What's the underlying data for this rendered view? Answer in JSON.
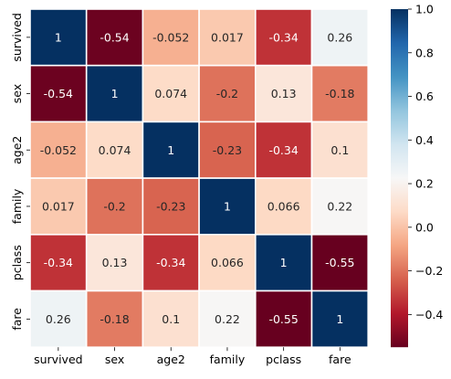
{
  "chart_data": {
    "type": "heatmap",
    "title": "",
    "xlabel": "",
    "ylabel": "",
    "x_labels": [
      "survived",
      "sex",
      "age2",
      "family",
      "pclass",
      "fare"
    ],
    "y_labels": [
      "survived",
      "sex",
      "age2",
      "family",
      "pclass",
      "fare"
    ],
    "values": [
      [
        1,
        -0.54,
        -0.052,
        0.017,
        -0.34,
        0.26
      ],
      [
        -0.54,
        1,
        0.074,
        -0.2,
        0.13,
        -0.18
      ],
      [
        -0.052,
        0.074,
        1,
        -0.23,
        -0.34,
        0.1
      ],
      [
        0.017,
        -0.2,
        -0.23,
        1,
        0.066,
        0.22
      ],
      [
        -0.34,
        0.13,
        -0.34,
        0.066,
        1,
        -0.55
      ],
      [
        0.26,
        -0.18,
        0.1,
        0.22,
        -0.55,
        1
      ]
    ],
    "labels": [
      [
        "1",
        "-0.54",
        "-0.052",
        "0.017",
        "-0.34",
        "0.26"
      ],
      [
        "-0.54",
        "1",
        "0.074",
        "-0.2",
        "0.13",
        "-0.18"
      ],
      [
        "-0.052",
        "0.074",
        "1",
        "-0.23",
        "-0.34",
        "0.1"
      ],
      [
        "0.017",
        "-0.2",
        "-0.23",
        "1",
        "0.066",
        "0.22"
      ],
      [
        "-0.34",
        "0.13",
        "-0.34",
        "0.066",
        "1",
        "-0.55"
      ],
      [
        "0.26",
        "-0.18",
        "0.1",
        "0.22",
        "-0.55",
        "1"
      ]
    ],
    "colormap": "RdBu",
    "vmin": -0.55,
    "vmax": 1,
    "colorbar_ticks": [
      1.0,
      0.8,
      0.6,
      0.4,
      0.2,
      0.0,
      -0.2,
      -0.4
    ],
    "colorbar_tick_labels": [
      "1.0",
      "0.8",
      "0.6",
      "0.4",
      "0.2",
      "0.0",
      "−0.2",
      "−0.4"
    ]
  }
}
